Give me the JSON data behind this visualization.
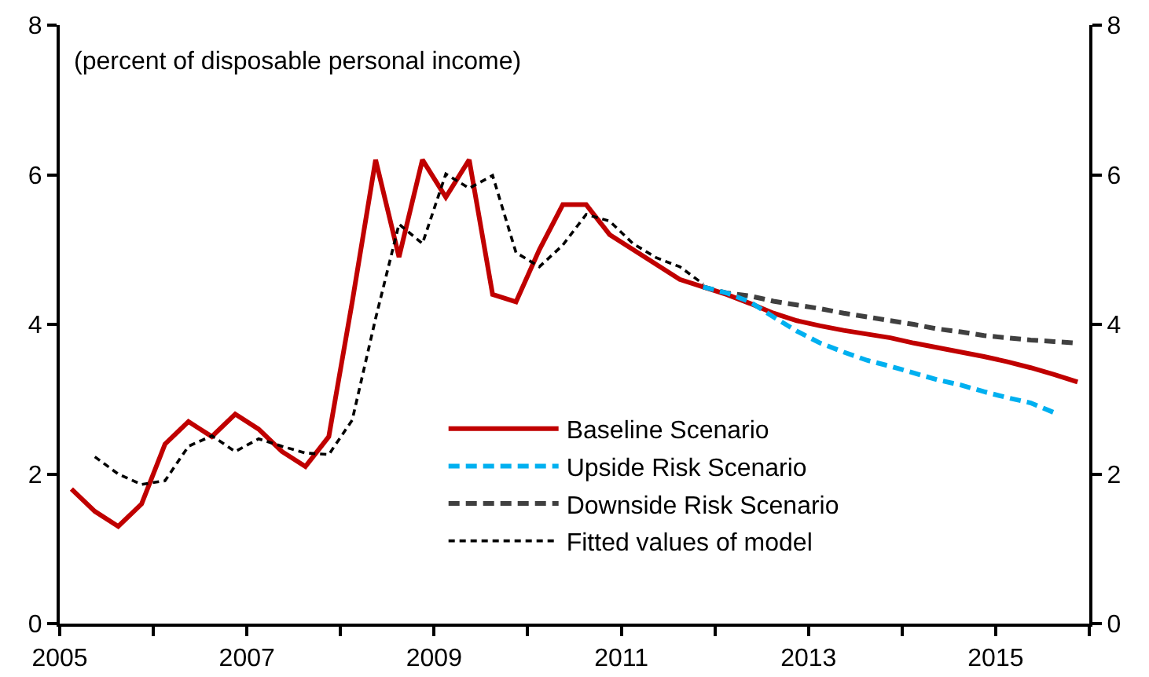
{
  "chart_data": {
    "type": "line",
    "annotations": [
      "(percent of disposable personal income)"
    ],
    "xlim": [
      2005,
      2016
    ],
    "xticks": [
      2005,
      {
        "value": 2006,
        "label": null
      },
      2007,
      {
        "value": 2008,
        "label": null
      },
      2009,
      {
        "value": 2010,
        "label": null
      },
      2011,
      {
        "value": 2012,
        "label": null
      },
      2013,
      {
        "value": 2014,
        "label": null
      },
      2015,
      {
        "value": 2016,
        "label": null
      }
    ],
    "ylim": [
      0,
      8
    ],
    "yticks": [
      0,
      2,
      4,
      6,
      8
    ],
    "y2lim": [
      0,
      8
    ],
    "y2ticks": [
      0,
      2,
      4,
      6,
      8
    ],
    "grid": false,
    "legend": "bottom right",
    "marker": "none",
    "series": [
      {
        "name": "Baseline Scenario",
        "color": "#c00000",
        "line_style": "solid",
        "x": [
          2005.125,
          2005.375,
          2005.625,
          2005.875,
          2006.125,
          2006.375,
          2006.625,
          2006.875,
          2007.125,
          2007.375,
          2007.625,
          2007.875,
          2008.125,
          2008.375,
          2008.625,
          2008.875,
          2009.125,
          2009.375,
          2009.625,
          2009.875,
          2010.125,
          2010.375,
          2010.625,
          2010.875,
          2011.125,
          2011.375,
          2011.625,
          2011.875,
          2012.125,
          2012.375,
          2012.625,
          2012.875,
          2013.125,
          2013.375,
          2013.625,
          2013.875,
          2014.125,
          2014.375,
          2014.625,
          2014.875,
          2015.125,
          2015.375,
          2015.625,
          2015.875
        ],
        "values": [
          1.8,
          1.5,
          1.3,
          1.6,
          2.4,
          2.7,
          2.5,
          2.8,
          2.6,
          2.3,
          2.1,
          2.5,
          4.3,
          6.2,
          4.9,
          6.2,
          5.7,
          6.2,
          4.4,
          4.3,
          5.0,
          5.6,
          5.6,
          5.2,
          5.0,
          4.8,
          4.6,
          4.5,
          4.4,
          4.28,
          4.15,
          4.05,
          3.98,
          3.92,
          3.87,
          3.82,
          3.75,
          3.69,
          3.63,
          3.57,
          3.5,
          3.42,
          3.33,
          3.23
        ]
      },
      {
        "name": "Upside Risk Scenario",
        "color": "#00b0f0",
        "line_style": "dashed",
        "x": [
          2011.875,
          2012.125,
          2012.375,
          2012.625,
          2012.875,
          2013.125,
          2013.375,
          2013.625,
          2013.875,
          2014.125,
          2014.375,
          2014.625,
          2014.875,
          2015.125,
          2015.375,
          2015.625
        ],
        "values": [
          4.5,
          4.42,
          4.3,
          4.1,
          3.91,
          3.75,
          3.63,
          3.52,
          3.44,
          3.35,
          3.26,
          3.19,
          3.1,
          3.02,
          2.95,
          2.82
        ]
      },
      {
        "name": "Downside Risk Scenario",
        "color": "#404040",
        "line_style": "dashed",
        "x": [
          2011.875,
          2012.125,
          2012.375,
          2012.625,
          2012.875,
          2013.125,
          2013.375,
          2013.625,
          2013.875,
          2014.125,
          2014.375,
          2014.625,
          2014.875,
          2015.125,
          2015.375,
          2015.625,
          2015.875
        ],
        "values": [
          4.5,
          4.42,
          4.38,
          4.31,
          4.26,
          4.21,
          4.15,
          4.1,
          4.05,
          4.0,
          3.94,
          3.9,
          3.85,
          3.82,
          3.79,
          3.77,
          3.75
        ]
      },
      {
        "name": "Fitted values of model",
        "color": "#000000",
        "line_style": "dotted",
        "x": [
          2005.375,
          2005.625,
          2005.875,
          2006.125,
          2006.375,
          2006.625,
          2006.875,
          2007.125,
          2007.375,
          2007.625,
          2007.875,
          2008.125,
          2008.375,
          2008.625,
          2008.875,
          2009.125,
          2009.375,
          2009.625,
          2009.875,
          2010.125,
          2010.375,
          2010.625,
          2010.875,
          2011.125,
          2011.375,
          2011.625,
          2011.875
        ],
        "values": [
          2.23,
          2.0,
          1.86,
          1.91,
          2.37,
          2.51,
          2.3,
          2.47,
          2.37,
          2.28,
          2.26,
          2.72,
          4.08,
          5.34,
          5.08,
          6.01,
          5.82,
          5.99,
          4.96,
          4.77,
          5.06,
          5.47,
          5.38,
          5.08,
          4.89,
          4.77,
          4.54
        ]
      }
    ]
  }
}
